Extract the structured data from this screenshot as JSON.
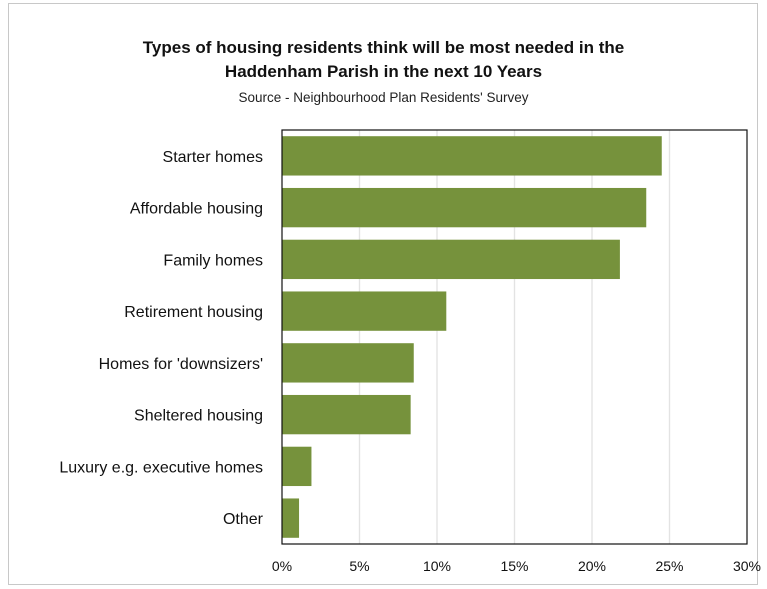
{
  "chart_data": {
    "type": "bar",
    "orientation": "horizontal",
    "title_line1": "Types of housing residents think will be most needed in the",
    "title_line2": "Haddenham Parish in the next 10 Years",
    "subtitle": "Source - Neighbourhood Plan Residents' Survey",
    "categories": [
      "Starter homes",
      "Affordable housing",
      "Family homes",
      "Retirement housing",
      "Homes for 'downsizers'",
      "Sheltered housing",
      "Luxury e.g. executive homes",
      "Other"
    ],
    "values": [
      24.5,
      23.5,
      21.8,
      10.6,
      8.5,
      8.3,
      1.9,
      1.1
    ],
    "unit": "%",
    "xlim": [
      0,
      30
    ],
    "xticks": [
      0,
      5,
      10,
      15,
      20,
      25,
      30
    ],
    "xtick_labels": [
      "0%",
      "5%",
      "10%",
      "15%",
      "20%",
      "25%",
      "30%"
    ],
    "grid": "vertical",
    "bar_color": "#76923c",
    "grid_color": "#e3e3e3",
    "legend": "none"
  }
}
